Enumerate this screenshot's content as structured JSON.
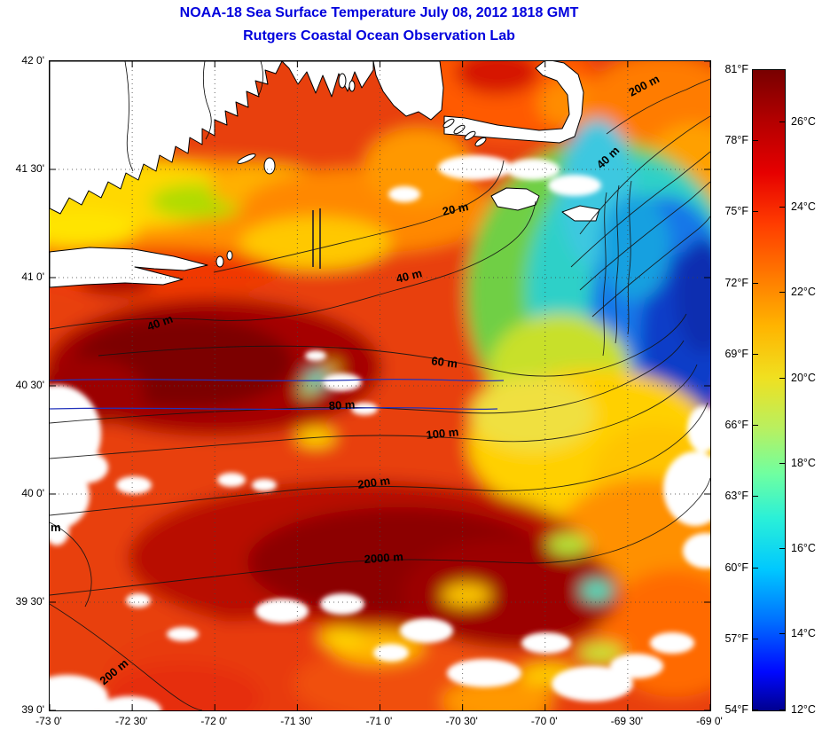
{
  "header": {
    "title": "NOAA-18 Sea Surface Temperature July 08, 2012 1818 GMT",
    "subtitle": "Rutgers Coastal Ocean Observation Lab"
  },
  "colors": {
    "title_blue": "#0000dd",
    "frame_black": "#000000",
    "track_blue": "#2233bb",
    "warmest": "#780000",
    "coolest": "#00008f"
  },
  "axes": {
    "x_ticks": [
      "-73 0'",
      "-72 30'",
      "-72 0'",
      "-71 30'",
      "-71 0'",
      "-70 30'",
      "-70 0'",
      "-69 30'",
      "-69 0'"
    ],
    "y_ticks": [
      "42 0'",
      "41 30'",
      "41 0'",
      "40 30'",
      "40 0'",
      "39 30'",
      "39 0'"
    ]
  },
  "colorbar": {
    "min_f": 54,
    "max_f": 81,
    "min_c": 12,
    "max_c": 26,
    "f_labels": [
      {
        "text": "81°F",
        "f": 81
      },
      {
        "text": "78°F",
        "f": 78
      },
      {
        "text": "75°F",
        "f": 75
      },
      {
        "text": "72°F",
        "f": 72
      },
      {
        "text": "69°F",
        "f": 69
      },
      {
        "text": "66°F",
        "f": 66
      },
      {
        "text": "63°F",
        "f": 63
      },
      {
        "text": "60°F",
        "f": 60
      },
      {
        "text": "57°F",
        "f": 57
      },
      {
        "text": "54°F",
        "f": 54
      }
    ],
    "c_labels": [
      {
        "text": "26°C",
        "c": 26
      },
      {
        "text": "24°C",
        "c": 24
      },
      {
        "text": "22°C",
        "c": 22
      },
      {
        "text": "20°C",
        "c": 20
      },
      {
        "text": "18°C",
        "c": 18
      },
      {
        "text": "16°C",
        "c": 16
      },
      {
        "text": "14°C",
        "c": 14
      },
      {
        "text": "12°C",
        "c": 12
      }
    ]
  },
  "contour_labels": [
    {
      "label": "200 m"
    },
    {
      "label": "40 m"
    },
    {
      "label": "20 m"
    },
    {
      "label": "40 m"
    },
    {
      "label": "40 m"
    },
    {
      "label": "60 m"
    },
    {
      "label": "80 m"
    },
    {
      "label": "100 m"
    },
    {
      "label": "200 m"
    },
    {
      "label": "2000 m"
    },
    {
      "label": "m"
    },
    {
      "label": "200 m"
    }
  ]
}
